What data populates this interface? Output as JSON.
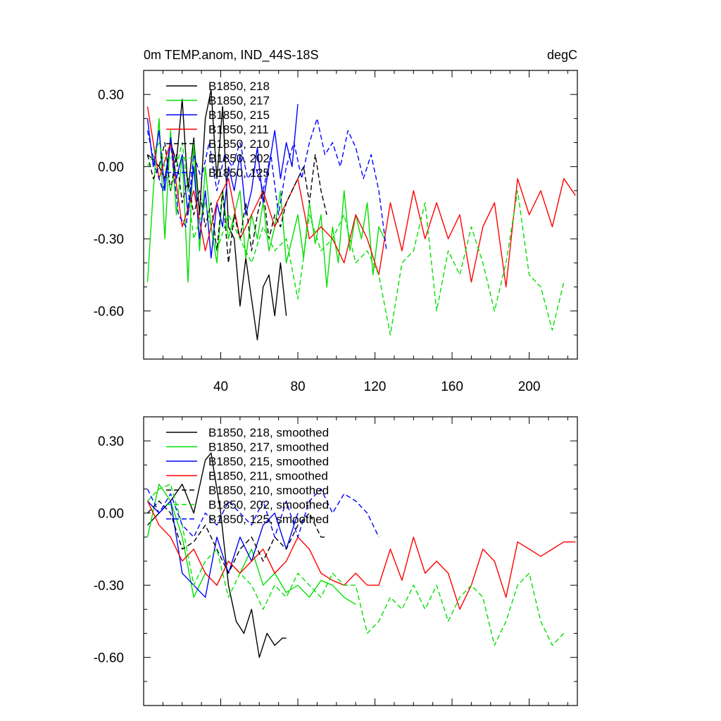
{
  "chart_data": [
    {
      "type": "line",
      "title_left": "0m TEMP.anom, IND_44S-18S",
      "title_right": "degC",
      "xlim": [
        0,
        225
      ],
      "ylim": [
        -0.8,
        0.4
      ],
      "xticks": [
        40,
        80,
        120,
        160,
        200
      ],
      "xtick_labels": [
        "40",
        "80",
        "120",
        "160",
        "200"
      ],
      "yticks": [
        0.3,
        0.0,
        -0.3,
        -0.6
      ],
      "ytick_labels": [
        "0.30",
        "0.00",
        "-0.30",
        "-0.60"
      ],
      "series": [
        {
          "name": "B1850, 218",
          "color": "#000000",
          "dash": "solid",
          "x": [
            2,
            5,
            8,
            11,
            14,
            17,
            20,
            23,
            26,
            29,
            32,
            35,
            38,
            41,
            44,
            47,
            50,
            53,
            56,
            59,
            62,
            65,
            68,
            71,
            74
          ],
          "y": [
            0.05,
            0.03,
            0.0,
            -0.05,
            0.1,
            0.02,
            0.28,
            -0.1,
            0.12,
            -0.2,
            0.2,
            0.32,
            -0.05,
            0.25,
            -0.25,
            -0.3,
            -0.58,
            -0.38,
            -0.55,
            -0.72,
            -0.5,
            -0.45,
            -0.62,
            -0.4,
            -0.62
          ]
        },
        {
          "name": "B1850, 217",
          "color": "#00e000",
          "dash": "solid",
          "x": [
            2,
            5,
            8,
            11,
            14,
            17,
            20,
            23,
            26,
            29,
            32,
            35,
            38,
            41,
            44,
            47,
            50,
            53,
            56,
            59,
            62,
            65,
            68,
            71,
            74,
            77,
            80,
            83,
            86,
            89,
            92,
            95,
            98,
            101,
            104,
            107,
            110,
            113,
            116,
            119,
            122,
            125
          ],
          "y": [
            -0.48,
            -0.1,
            0.2,
            -0.3,
            0.15,
            -0.2,
            0.05,
            -0.48,
            0.1,
            -0.35,
            0.0,
            -0.25,
            -0.4,
            -0.1,
            -0.3,
            -0.2,
            -0.1,
            -0.38,
            -0.2,
            -0.3,
            -0.15,
            -0.35,
            -0.25,
            -0.1,
            -0.4,
            -0.3,
            -0.2,
            -0.38,
            -0.15,
            -0.32,
            -0.2,
            -0.5,
            -0.25,
            -0.4,
            -0.1,
            -0.35,
            -0.2,
            -0.3,
            -0.15,
            -0.45,
            -0.25,
            -0.3
          ]
        },
        {
          "name": "B1850, 215",
          "color": "#0000ff",
          "dash": "solid",
          "x": [
            2,
            5,
            8,
            11,
            14,
            17,
            20,
            23,
            26,
            29,
            32,
            35,
            38,
            41,
            44,
            47,
            50,
            53,
            56,
            59,
            62,
            65,
            68,
            71,
            74,
            77,
            80
          ],
          "y": [
            0.2,
            0.0,
            0.15,
            -0.1,
            0.12,
            -0.05,
            0.05,
            -0.2,
            0.0,
            -0.3,
            -0.1,
            -0.38,
            -0.15,
            -0.25,
            0.0,
            -0.1,
            0.05,
            -0.2,
            -0.1,
            0.08,
            -0.15,
            0.0,
            0.15,
            -0.05,
            0.1,
            0.0,
            0.26
          ]
        },
        {
          "name": "B1850, 211",
          "color": "#ff0000",
          "dash": "solid",
          "x": [
            2,
            8,
            14,
            20,
            26,
            32,
            38,
            44,
            50,
            56,
            62,
            68,
            74,
            80,
            86,
            92,
            98,
            104,
            110,
            116,
            122,
            128,
            134,
            140,
            146,
            152,
            158,
            164,
            170,
            176,
            182,
            188,
            194,
            200,
            206,
            212,
            218,
            224
          ],
          "y": [
            0.25,
            -0.05,
            0.1,
            -0.25,
            -0.1,
            -0.35,
            -0.15,
            -0.05,
            -0.3,
            -0.2,
            -0.1,
            -0.25,
            -0.15,
            -0.05,
            -0.3,
            -0.25,
            -0.3,
            -0.4,
            -0.2,
            -0.3,
            -0.45,
            -0.15,
            -0.35,
            -0.1,
            -0.3,
            -0.15,
            -0.3,
            -0.2,
            -0.48,
            -0.25,
            -0.15,
            -0.5,
            -0.05,
            -0.2,
            -0.1,
            -0.25,
            -0.05,
            -0.12
          ]
        },
        {
          "name": "B1850, 210",
          "color": "#000000",
          "dash": "dashed",
          "x": [
            2,
            5,
            8,
            11,
            14,
            17,
            20,
            23,
            26,
            29,
            32,
            35,
            38,
            41,
            44,
            47,
            50,
            53,
            56,
            59,
            62,
            65,
            68,
            71,
            74,
            77,
            80,
            83,
            86,
            89,
            92,
            95
          ],
          "y": [
            0.05,
            -0.05,
            0.0,
            0.1,
            -0.1,
            0.05,
            -0.15,
            -0.05,
            -0.2,
            -0.1,
            -0.25,
            -0.15,
            -0.35,
            -0.1,
            -0.4,
            -0.2,
            -0.3,
            -0.15,
            -0.35,
            -0.2,
            -0.1,
            -0.3,
            -0.2,
            -0.25,
            -0.15,
            -0.1,
            -0.05,
            0.0,
            -0.15,
            0.05,
            -0.1,
            -0.2
          ]
        },
        {
          "name": "B1850, 202",
          "color": "#00e000",
          "dash": "dashed",
          "x": [
            2,
            8,
            14,
            20,
            26,
            32,
            38,
            44,
            50,
            56,
            62,
            68,
            74,
            80,
            86,
            92,
            98,
            104,
            110,
            116,
            122,
            128,
            134,
            140,
            146,
            152,
            158,
            164,
            170,
            176,
            182,
            188,
            194,
            200,
            206,
            212,
            218
          ],
          "y": [
            0.0,
            0.1,
            -0.1,
            0.1,
            -0.3,
            -0.15,
            -0.35,
            -0.2,
            -0.3,
            -0.4,
            -0.25,
            -0.35,
            -0.3,
            -0.55,
            -0.2,
            -0.35,
            -0.3,
            -0.2,
            -0.4,
            -0.35,
            -0.45,
            -0.7,
            -0.4,
            -0.35,
            -0.15,
            -0.6,
            -0.35,
            -0.45,
            -0.25,
            -0.4,
            -0.6,
            -0.4,
            -0.1,
            -0.45,
            -0.5,
            -0.68,
            -0.48
          ]
        },
        {
          "name": "B1850, 125",
          "color": "#0000ff",
          "dash": "dashed",
          "x": [
            2,
            6,
            10,
            14,
            18,
            22,
            26,
            30,
            34,
            38,
            42,
            46,
            50,
            54,
            58,
            62,
            66,
            70,
            74,
            78,
            82,
            86,
            90,
            94,
            98,
            102,
            106,
            110,
            114,
            118,
            122,
            126
          ],
          "y": [
            0.15,
            0.0,
            -0.1,
            0.1,
            -0.2,
            -0.25,
            0.05,
            -0.05,
            0.1,
            -0.1,
            0.05,
            0.0,
            0.1,
            -0.05,
            0.0,
            -0.1,
            0.05,
            -0.2,
            0.0,
            0.1,
            -0.05,
            0.1,
            0.2,
            0.05,
            0.1,
            0.0,
            0.15,
            0.08,
            -0.05,
            0.05,
            -0.1,
            -0.35
          ]
        }
      ]
    },
    {
      "type": "line",
      "xlim": [
        0,
        225
      ],
      "ylim": [
        -0.8,
        0.4
      ],
      "yticks": [
        0.3,
        0.0,
        -0.3,
        -0.6
      ],
      "ytick_labels": [
        "0.30",
        "0.00",
        "-0.30",
        "-0.60"
      ],
      "series": [
        {
          "name": "B1850, 218, smoothed",
          "color": "#000000",
          "dash": "solid",
          "x": [
            2,
            8,
            14,
            20,
            26,
            32,
            35,
            40,
            44,
            48,
            52,
            56,
            60,
            64,
            68,
            72,
            74
          ],
          "y": [
            -0.05,
            0.0,
            0.05,
            0.12,
            0.0,
            0.22,
            0.25,
            0.0,
            -0.3,
            -0.45,
            -0.5,
            -0.4,
            -0.6,
            -0.5,
            -0.55,
            -0.52,
            -0.52
          ]
        },
        {
          "name": "B1850, 217, smoothed",
          "color": "#00e000",
          "dash": "solid",
          "x": [
            2,
            8,
            14,
            20,
            26,
            32,
            38,
            44,
            50,
            56,
            62,
            68,
            74,
            80,
            86,
            92,
            98,
            104,
            110
          ],
          "y": [
            -0.1,
            0.12,
            0.05,
            -0.1,
            -0.35,
            -0.25,
            -0.3,
            -0.2,
            -0.25,
            -0.15,
            -0.3,
            -0.25,
            -0.33,
            -0.3,
            -0.35,
            -0.28,
            -0.3,
            -0.35,
            -0.38
          ]
        },
        {
          "name": "B1850, 215, smoothed",
          "color": "#0000ff",
          "dash": "solid",
          "x": [
            2,
            8,
            14,
            20,
            26,
            32,
            38,
            44,
            50,
            56,
            62,
            68,
            74,
            80
          ],
          "y": [
            0.05,
            0.0,
            0.05,
            -0.25,
            -0.3,
            -0.35,
            -0.1,
            -0.25,
            -0.1,
            -0.2,
            -0.05,
            0.0,
            -0.15,
            0.0
          ]
        },
        {
          "name": "B1850, 211, smoothed",
          "color": "#ff0000",
          "dash": "solid",
          "x": [
            2,
            8,
            14,
            20,
            26,
            32,
            38,
            44,
            50,
            56,
            62,
            68,
            74,
            80,
            86,
            92,
            98,
            104,
            110,
            116,
            122,
            128,
            134,
            140,
            146,
            152,
            158,
            164,
            170,
            176,
            182,
            188,
            194,
            200,
            206,
            212,
            218,
            224
          ],
          "y": [
            0.05,
            -0.05,
            -0.1,
            -0.2,
            -0.15,
            -0.25,
            -0.3,
            -0.2,
            -0.25,
            -0.2,
            -0.15,
            -0.25,
            -0.2,
            -0.1,
            -0.15,
            -0.25,
            -0.28,
            -0.3,
            -0.25,
            -0.3,
            -0.3,
            -0.15,
            -0.28,
            -0.1,
            -0.25,
            -0.2,
            -0.25,
            -0.4,
            -0.3,
            -0.15,
            -0.2,
            -0.35,
            -0.12,
            -0.15,
            -0.18,
            -0.15,
            -0.12,
            -0.12
          ]
        },
        {
          "name": "B1850, 210, smoothed",
          "color": "#000000",
          "dash": "dashed",
          "x": [
            2,
            8,
            14,
            20,
            26,
            32,
            38,
            44,
            50,
            56,
            62,
            68,
            74,
            80,
            86,
            92,
            95
          ],
          "y": [
            0.0,
            0.05,
            0.0,
            -0.15,
            -0.12,
            -0.05,
            -0.15,
            -0.25,
            -0.15,
            -0.1,
            -0.2,
            -0.1,
            -0.15,
            -0.05,
            0.0,
            -0.1,
            -0.1
          ]
        },
        {
          "name": "B1850, 202, smoothed",
          "color": "#00e000",
          "dash": "dashed",
          "x": [
            2,
            8,
            14,
            20,
            26,
            32,
            38,
            44,
            50,
            56,
            62,
            68,
            74,
            80,
            86,
            92,
            98,
            104,
            110,
            116,
            122,
            128,
            134,
            140,
            146,
            152,
            158,
            164,
            170,
            176,
            182,
            188,
            194,
            200,
            206,
            212,
            218
          ],
          "y": [
            0.05,
            0.1,
            0.12,
            -0.05,
            -0.3,
            -0.2,
            -0.15,
            -0.35,
            -0.25,
            -0.3,
            -0.4,
            -0.3,
            -0.35,
            -0.25,
            -0.3,
            -0.35,
            -0.25,
            -0.3,
            -0.3,
            -0.5,
            -0.45,
            -0.35,
            -0.4,
            -0.3,
            -0.4,
            -0.3,
            -0.45,
            -0.35,
            -0.3,
            -0.35,
            -0.55,
            -0.45,
            -0.3,
            -0.25,
            -0.45,
            -0.55,
            -0.5
          ]
        },
        {
          "name": "B1850, 125, smoothed",
          "color": "#0000ff",
          "dash": "dashed",
          "x": [
            2,
            8,
            14,
            20,
            26,
            32,
            38,
            44,
            50,
            56,
            62,
            68,
            74,
            80,
            86,
            92,
            98,
            104,
            110,
            116,
            122
          ],
          "y": [
            0.1,
            0.0,
            0.08,
            -0.05,
            -0.1,
            0.0,
            -0.05,
            0.05,
            0.0,
            -0.05,
            0.05,
            -0.1,
            0.05,
            -0.1,
            0.05,
            0.1,
            0.0,
            0.08,
            0.05,
            0.0,
            -0.1
          ]
        }
      ]
    }
  ]
}
